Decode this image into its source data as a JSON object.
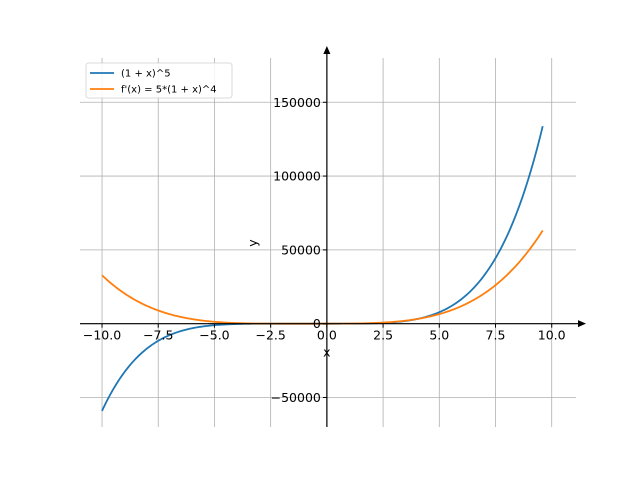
{
  "chart_data": {
    "type": "line",
    "title": "",
    "xlabel": "x",
    "ylabel": "y",
    "xlim": [
      -10.98,
      11.08
    ],
    "ylim": [
      -70000,
      180000
    ],
    "grid": true,
    "legend_position": "top-left",
    "xticks": [
      -10.0,
      -7.5,
      -5.0,
      -2.5,
      0.0,
      2.5,
      5.0,
      7.5,
      10.0
    ],
    "xtick_labels": [
      "−10.0",
      "−7.5",
      "−5.0",
      "−2.5",
      "0.0",
      "2.5",
      "5.0",
      "7.5",
      "10.0"
    ],
    "yticks": [
      -50000,
      0,
      50000,
      100000,
      150000
    ],
    "ytick_labels": [
      "−50000",
      "0",
      "50000",
      "100000",
      "150000"
    ],
    "x_domain": [
      -10,
      9.6
    ],
    "series": [
      {
        "name": "(1 + x)^5",
        "color": "#1f77b4",
        "function": "(1 + x)^5"
      },
      {
        "name": "f'(x) = 5*(1 + x)^4",
        "color": "#ff7f0e",
        "function": "5*(1 + x)^4"
      }
    ]
  }
}
